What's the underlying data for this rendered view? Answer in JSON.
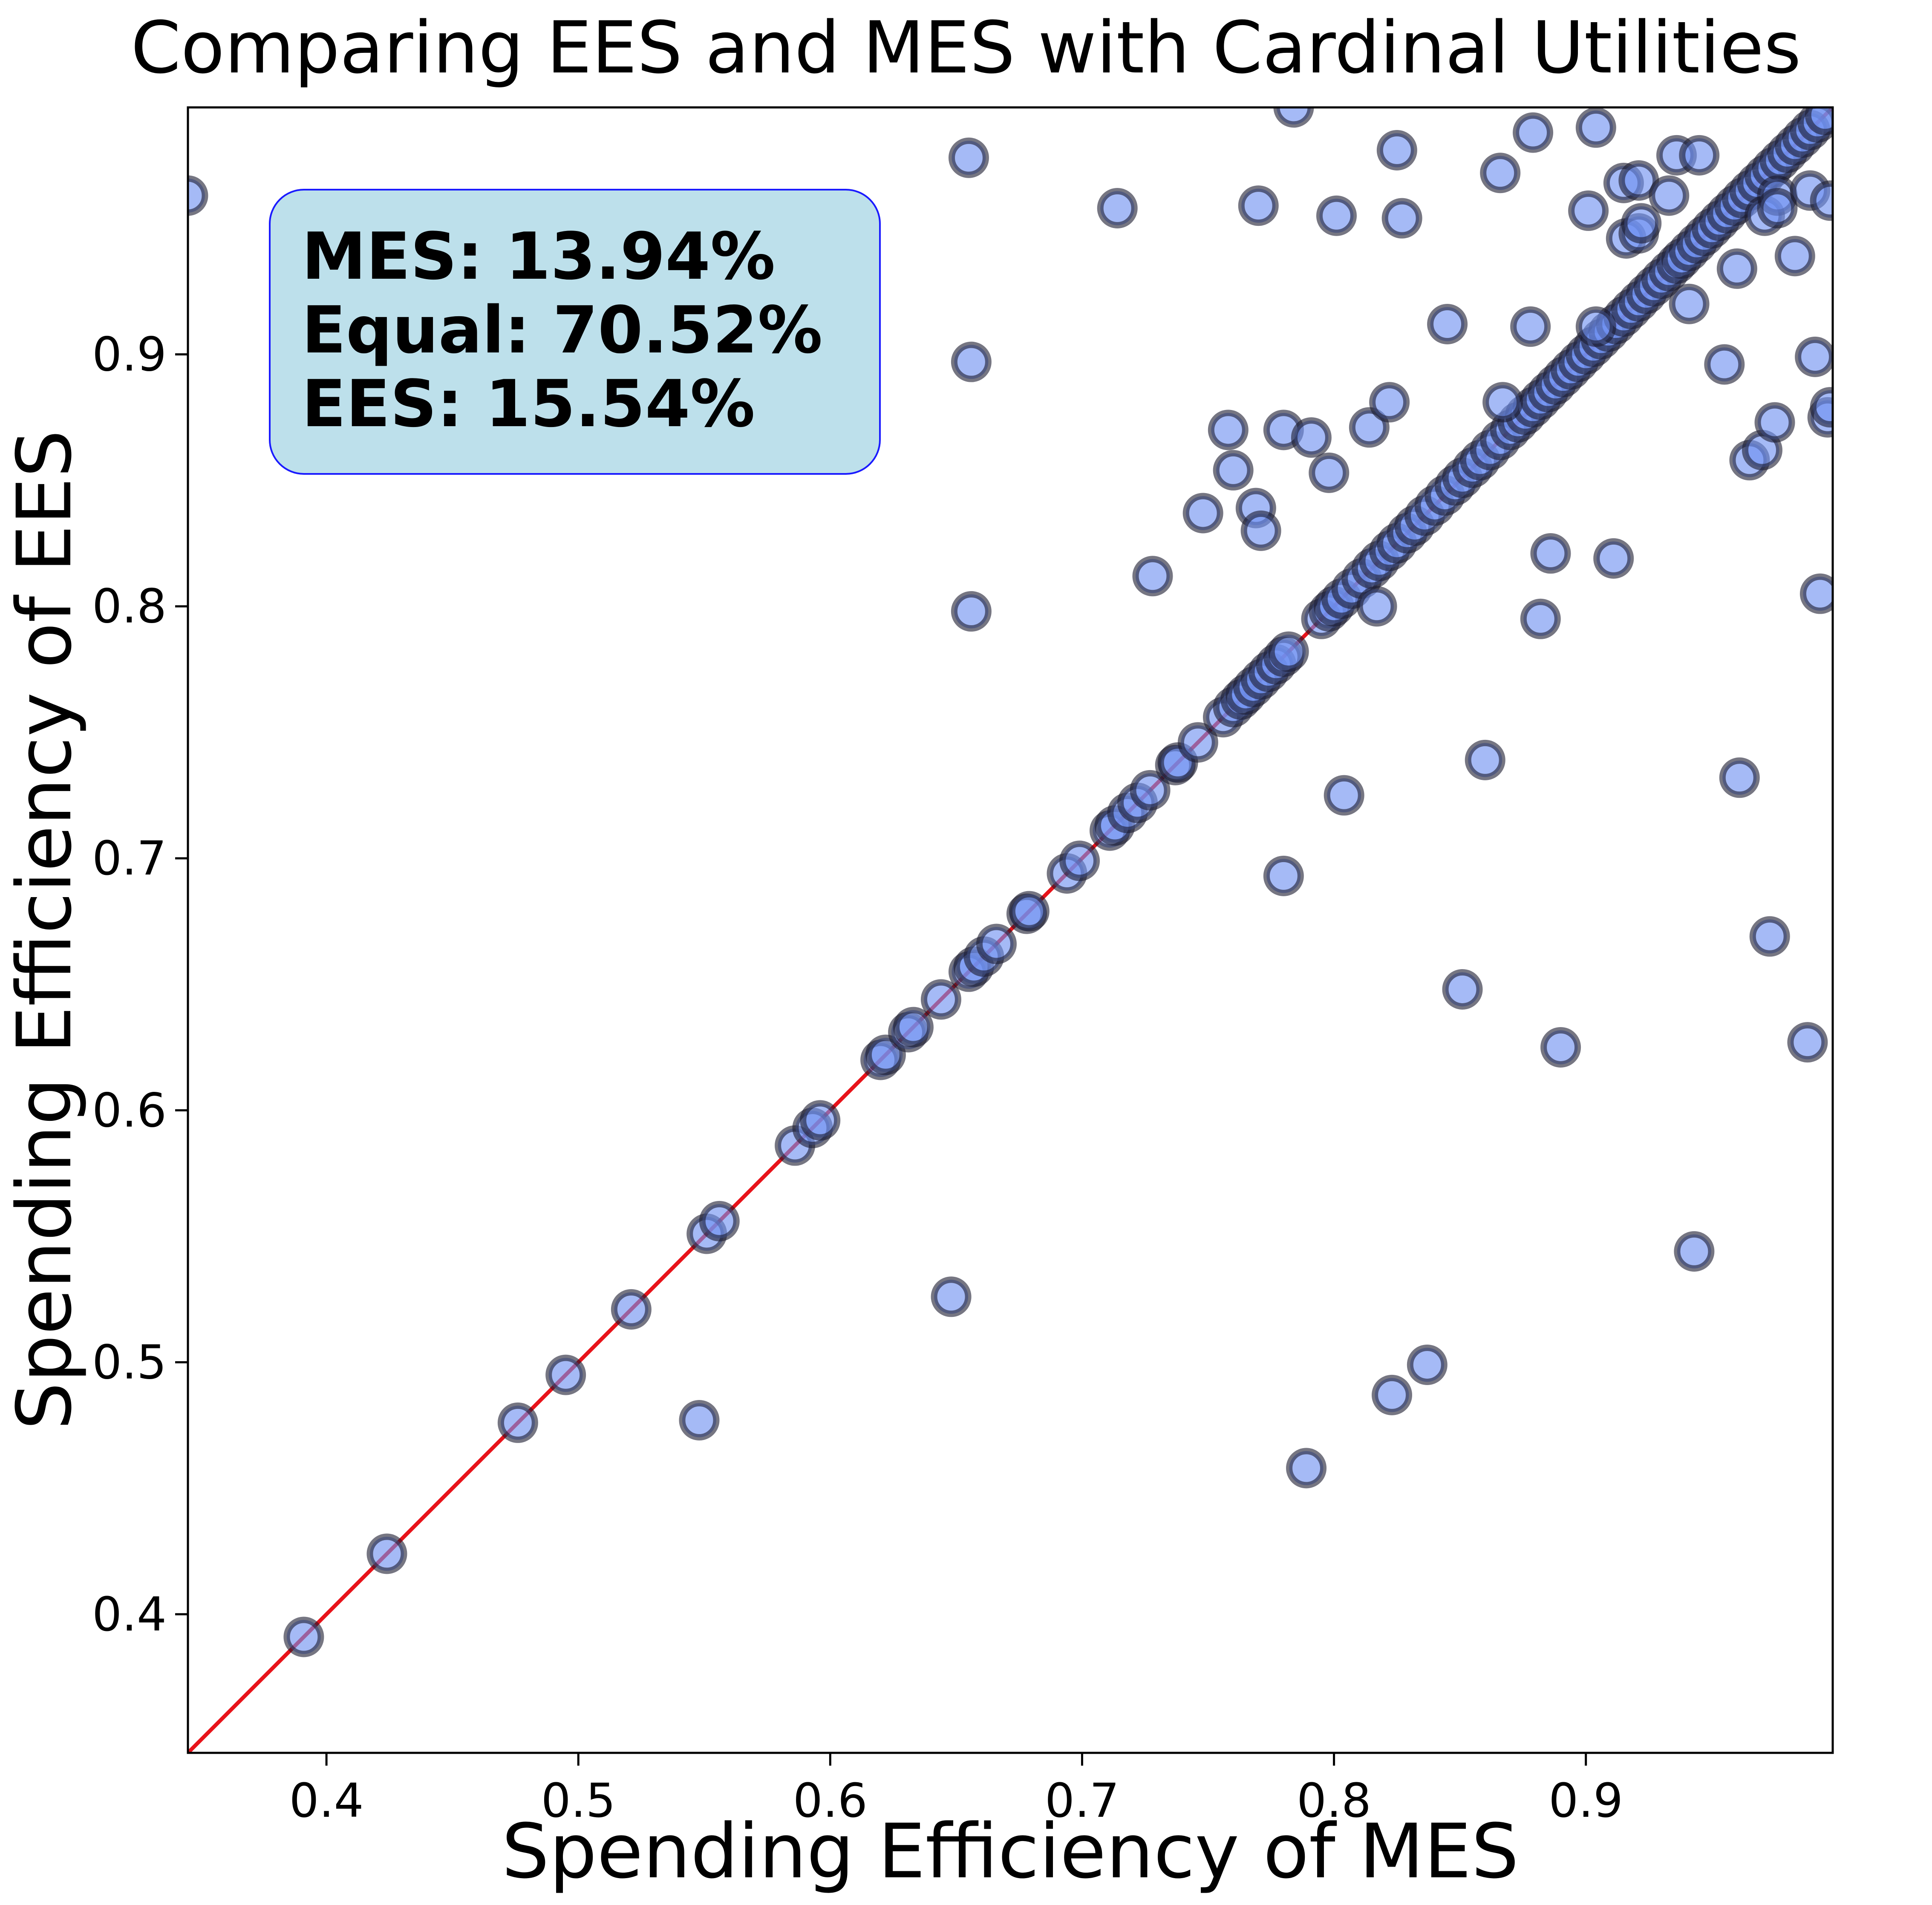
{
  "chart_data": {
    "type": "scatter",
    "title": "Comparing EES and MES with Cardinal Utilities",
    "xlabel": "Spending Efficiency of MES",
    "ylabel": "Spending Efficiency of EES",
    "xlim": [
      0.345,
      0.998
    ],
    "ylim": [
      0.345,
      0.998
    ],
    "xticks": [
      0.4,
      0.5,
      0.6,
      0.7,
      0.8,
      0.9
    ],
    "yticks": [
      0.4,
      0.5,
      0.6,
      0.7,
      0.8,
      0.9
    ],
    "xtick_labels": [
      "0.4",
      "0.5",
      "0.6",
      "0.7",
      "0.8",
      "0.9"
    ],
    "ytick_labels": [
      "0.4",
      "0.5",
      "0.6",
      "0.7",
      "0.8",
      "0.9"
    ],
    "reference_line": {
      "type": "y=x",
      "color": "#e8131a"
    },
    "marker_fill": "#6d8ff0",
    "marker_edge": "#1a1a2e",
    "stats_box": {
      "lines": [
        "MES: 13.94%",
        "Equal: 70.52%",
        "EES: 15.54%"
      ],
      "background": "#bde0eb",
      "border": "#1a1aff",
      "placement": "top-left"
    },
    "diagonal_points": [
      0.391,
      0.424,
      0.476,
      0.495,
      0.521,
      0.551,
      0.556,
      0.586,
      0.593,
      0.596,
      0.62,
      0.622,
      0.631,
      0.633,
      0.644,
      0.655,
      0.657,
      0.661,
      0.666,
      0.678,
      0.679,
      0.694,
      0.699,
      0.711,
      0.713,
      0.718,
      0.722,
      0.727,
      0.737,
      0.738,
      0.746,
      0.756,
      0.76,
      0.763,
      0.765,
      0.768,
      0.771,
      0.774,
      0.777,
      0.78,
      0.782,
      0.795,
      0.798,
      0.8,
      0.803,
      0.807,
      0.811,
      0.815,
      0.818,
      0.822,
      0.825,
      0.829,
      0.832,
      0.836,
      0.84,
      0.844,
      0.848,
      0.851,
      0.855,
      0.858,
      0.862,
      0.866,
      0.87,
      0.873,
      0.876,
      0.879,
      0.882,
      0.885,
      0.888,
      0.891,
      0.894,
      0.897,
      0.9,
      0.903,
      0.906,
      0.909,
      0.912,
      0.915,
      0.918,
      0.921,
      0.924,
      0.927,
      0.93,
      0.933,
      0.936,
      0.938,
      0.941,
      0.944,
      0.947,
      0.95,
      0.953,
      0.956,
      0.959,
      0.962,
      0.965,
      0.968,
      0.971,
      0.974,
      0.977,
      0.98,
      0.983,
      0.986,
      0.989,
      0.992,
      0.995
    ],
    "off_diagonal_points": [
      [
        0.345,
        0.963
      ],
      [
        0.655,
        0.978
      ],
      [
        0.656,
        0.897
      ],
      [
        0.656,
        0.798
      ],
      [
        0.648,
        0.526
      ],
      [
        0.548,
        0.477
      ],
      [
        0.714,
        0.958
      ],
      [
        0.728,
        0.812
      ],
      [
        0.748,
        0.837
      ],
      [
        0.758,
        0.87
      ],
      [
        0.76,
        0.854
      ],
      [
        0.769,
        0.839
      ],
      [
        0.771,
        0.83
      ],
      [
        0.77,
        0.959
      ],
      [
        0.78,
        0.87
      ],
      [
        0.78,
        0.693
      ],
      [
        0.784,
        0.998
      ],
      [
        0.791,
        0.867
      ],
      [
        0.789,
        0.458
      ],
      [
        0.798,
        0.853
      ],
      [
        0.801,
        0.955
      ],
      [
        0.804,
        0.725
      ],
      [
        0.814,
        0.871
      ],
      [
        0.817,
        0.8
      ],
      [
        0.822,
        0.881
      ],
      [
        0.825,
        0.981
      ],
      [
        0.827,
        0.954
      ],
      [
        0.823,
        0.487
      ],
      [
        0.837,
        0.499
      ],
      [
        0.845,
        0.912
      ],
      [
        0.851,
        0.648
      ],
      [
        0.86,
        0.739
      ],
      [
        0.866,
        0.972
      ],
      [
        0.867,
        0.881
      ],
      [
        0.878,
        0.911
      ],
      [
        0.879,
        0.988
      ],
      [
        0.882,
        0.795
      ],
      [
        0.886,
        0.821
      ],
      [
        0.89,
        0.625
      ],
      [
        0.901,
        0.957
      ],
      [
        0.904,
        0.99
      ],
      [
        0.904,
        0.911
      ],
      [
        0.911,
        0.819
      ],
      [
        0.915,
        0.968
      ],
      [
        0.916,
        0.946
      ],
      [
        0.921,
        0.969
      ],
      [
        0.921,
        0.948
      ],
      [
        0.922,
        0.952
      ],
      [
        0.933,
        0.963
      ],
      [
        0.936,
        0.979
      ],
      [
        0.941,
        0.92
      ],
      [
        0.945,
        0.979
      ],
      [
        0.943,
        0.544
      ],
      [
        0.955,
        0.896
      ],
      [
        0.96,
        0.934
      ],
      [
        0.961,
        0.732
      ],
      [
        0.965,
        0.858
      ],
      [
        0.97,
        0.862
      ],
      [
        0.971,
        0.955
      ],
      [
        0.976,
        0.963
      ],
      [
        0.976,
        0.958
      ],
      [
        0.975,
        0.873
      ],
      [
        0.973,
        0.669
      ],
      [
        0.983,
        0.939
      ],
      [
        0.989,
        0.965
      ],
      [
        0.991,
        0.899
      ],
      [
        0.993,
        0.805
      ],
      [
        0.988,
        0.627
      ],
      [
        0.996,
        0.875
      ],
      [
        0.997,
        0.879
      ],
      [
        0.997,
        0.961
      ]
    ]
  }
}
